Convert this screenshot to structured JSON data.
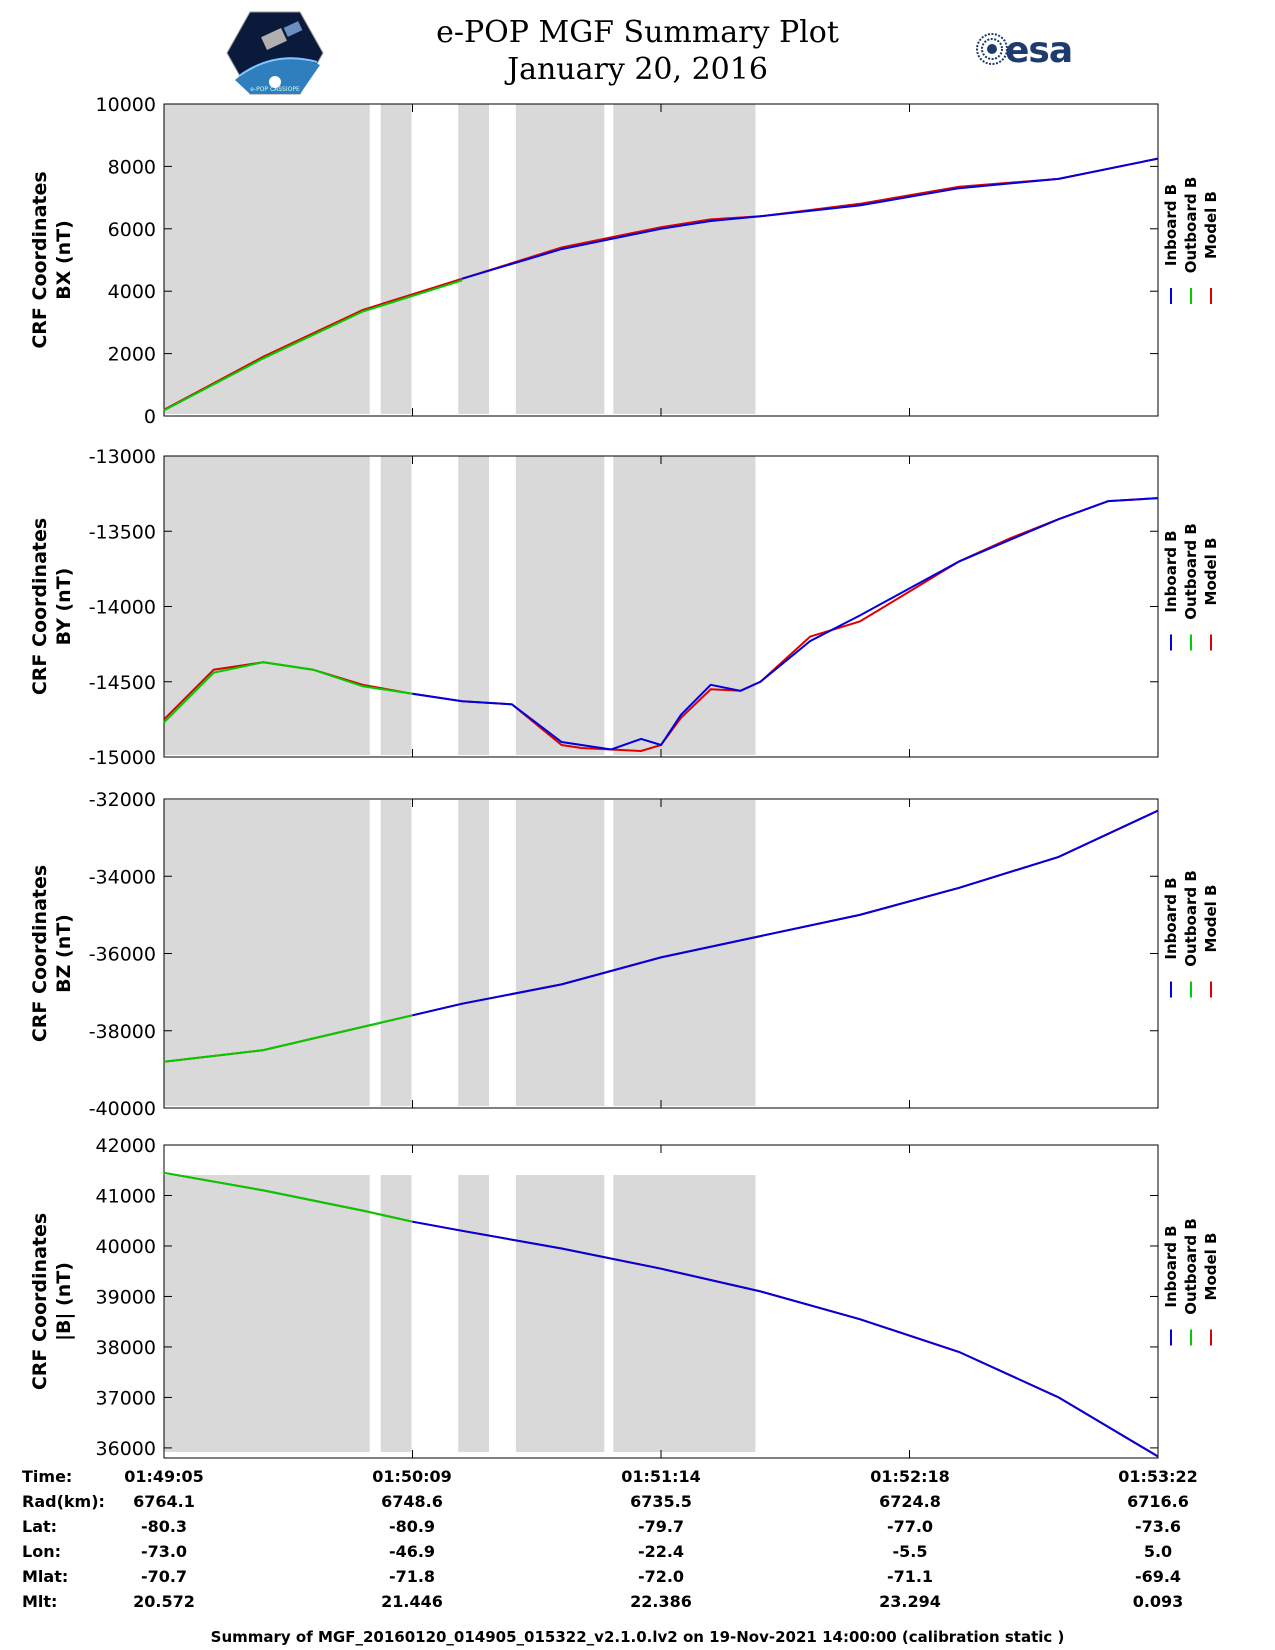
{
  "header": {
    "title": "e-POP MGF Summary Plot",
    "date": "January 20, 2016",
    "logo_left": "e-POP CASSIOPE",
    "logo_right": "esa"
  },
  "legend": {
    "inboard": "Inboard B",
    "outboard": "Outboard B",
    "model": "Model B"
  },
  "colors": {
    "inboard": "#0000e0",
    "outboard": "#00cc00",
    "model": "#e00000",
    "shade": "#d9d9d9"
  },
  "chart_data": [
    {
      "type": "line",
      "title": "",
      "ylabel_1": "CRF Coordinates",
      "ylabel_2": "BX (nT)",
      "ylim": [
        0,
        10000
      ],
      "yticks": [
        0,
        2000,
        4000,
        6000,
        8000,
        10000
      ],
      "ytick_labels": [
        "0",
        "2000",
        "4000",
        "6000",
        "8000",
        "10000"
      ],
      "x": [
        0,
        10,
        20,
        30,
        40,
        50,
        55,
        60,
        70,
        80,
        90,
        100
      ],
      "series": [
        {
          "name": "Model B",
          "values": [
            200,
            1900,
            3400,
            4400,
            5400,
            6050,
            6300,
            6400,
            6800,
            7350,
            7600,
            8250
          ]
        },
        {
          "name": "Outboard B",
          "values": [
            180,
            1850,
            3350,
            4350,
            null,
            null,
            null,
            null,
            null,
            null,
            null,
            null
          ]
        },
        {
          "name": "Inboard B",
          "values": [
            null,
            null,
            null,
            4400,
            5350,
            6000,
            6250,
            6400,
            6750,
            7300,
            7600,
            8250
          ]
        }
      ]
    },
    {
      "type": "line",
      "ylabel_1": "CRF Coordinates",
      "ylabel_2": "BY (nT)",
      "ylim": [
        -15000,
        -13000
      ],
      "yticks": [
        -15000,
        -14500,
        -14000,
        -13500,
        -13000
      ],
      "ytick_labels": [
        "-15000",
        "-14500",
        "-14000",
        "-13500",
        "-13000"
      ],
      "x": [
        0,
        5,
        10,
        15,
        20,
        25,
        30,
        35,
        40,
        42,
        45,
        48,
        50,
        52,
        55,
        58,
        60,
        65,
        70,
        75,
        80,
        85,
        90,
        95,
        100
      ],
      "series": [
        {
          "name": "Model B",
          "values": [
            -14750,
            -14420,
            -14370,
            -14420,
            -14520,
            -14580,
            -14630,
            -14650,
            -14920,
            -14940,
            -14950,
            -14960,
            -14920,
            -14740,
            -14550,
            -14560,
            -14500,
            -14200,
            -14100,
            -13900,
            -13700,
            -13550,
            -13420,
            -13300,
            -13280
          ]
        },
        {
          "name": "Outboard B",
          "values": [
            -14770,
            -14440,
            -14370,
            -14420,
            -14530,
            -14580,
            null,
            null,
            null,
            null,
            null,
            null,
            null,
            null,
            null,
            null,
            null,
            null,
            null,
            null,
            null,
            null,
            null,
            null,
            null
          ]
        },
        {
          "name": "Inboard B",
          "values": [
            null,
            null,
            null,
            null,
            null,
            -14580,
            -14630,
            -14650,
            -14900,
            -14920,
            -14950,
            -14880,
            -14920,
            -14720,
            -14520,
            -14560,
            -14500,
            -14230,
            -14060,
            -13880,
            -13700,
            -13560,
            -13420,
            -13300,
            -13280
          ]
        }
      ]
    },
    {
      "type": "line",
      "ylabel_1": "CRF Coordinates",
      "ylabel_2": "BZ (nT)",
      "ylim": [
        -40000,
        -32000
      ],
      "yticks": [
        -40000,
        -38000,
        -36000,
        -34000,
        -32000
      ],
      "ytick_labels": [
        "-40000",
        "-38000",
        "-36000",
        "-34000",
        "-32000"
      ],
      "x": [
        0,
        10,
        20,
        25,
        30,
        40,
        50,
        60,
        70,
        80,
        90,
        100
      ],
      "series": [
        {
          "name": "Model B",
          "values": [
            -38800,
            -38500,
            -37900,
            -37600,
            -37300,
            -36800,
            -36100,
            -35550,
            -35000,
            -34300,
            -33500,
            -32300
          ]
        },
        {
          "name": "Outboard B",
          "values": [
            -38800,
            -38500,
            -37900,
            -37600,
            null,
            null,
            null,
            null,
            null,
            null,
            null,
            null
          ]
        },
        {
          "name": "Inboard B",
          "values": [
            null,
            null,
            null,
            -37600,
            -37300,
            -36800,
            -36100,
            -35550,
            -35000,
            -34300,
            -33500,
            -32300
          ]
        }
      ]
    },
    {
      "type": "line",
      "ylabel_1": "CRF Coordinates",
      "ylabel_2": "|B| (nT)",
      "ylim": [
        35800,
        42000
      ],
      "yticks": [
        36000,
        37000,
        38000,
        39000,
        40000,
        41000,
        42000
      ],
      "ytick_labels": [
        "36000",
        "37000",
        "38000",
        "39000",
        "40000",
        "41000",
        "42000"
      ],
      "x": [
        0,
        10,
        20,
        25,
        30,
        40,
        50,
        60,
        70,
        80,
        90,
        100
      ],
      "series": [
        {
          "name": "Model B",
          "values": [
            41450,
            41100,
            40700,
            40480,
            40300,
            39950,
            39550,
            39100,
            38550,
            37900,
            37000,
            35830
          ]
        },
        {
          "name": "Outboard B",
          "values": [
            41450,
            41100,
            40700,
            40480,
            null,
            null,
            null,
            null,
            null,
            null,
            null,
            null
          ]
        },
        {
          "name": "Inboard B",
          "values": [
            null,
            null,
            null,
            40480,
            40300,
            39950,
            39550,
            39100,
            38550,
            37900,
            37000,
            35830
          ]
        }
      ]
    }
  ],
  "shaded_intervals": [
    [
      0,
      20.7
    ],
    [
      21.8,
      24.9
    ],
    [
      29.6,
      32.7
    ],
    [
      35.4,
      44.3
    ],
    [
      45.2,
      59.5
    ]
  ],
  "table": {
    "labels": [
      "Time:",
      "Rad(km):",
      "Lat:",
      "Lon:",
      "Mlat:",
      "Mlt:"
    ],
    "columns": [
      [
        "01:49:05",
        "6764.1",
        "-80.3",
        "-73.0",
        "-70.7",
        "20.572"
      ],
      [
        "01:50:09",
        "6748.6",
        "-80.9",
        "-46.9",
        "-71.8",
        "21.446"
      ],
      [
        "01:51:14",
        "6735.5",
        "-79.7",
        "-22.4",
        "-72.0",
        "22.386"
      ],
      [
        "01:52:18",
        "6724.8",
        "-77.0",
        "-5.5",
        "-71.1",
        "23.294"
      ],
      [
        "01:53:22",
        "6716.6",
        "-73.6",
        "5.0",
        "-69.4",
        "0.093"
      ]
    ]
  },
  "footer": "Summary of MGF_20160120_014905_015322_v2.1.0.lv2 on 19-Nov-2021 14:00:00 (calibration static )"
}
